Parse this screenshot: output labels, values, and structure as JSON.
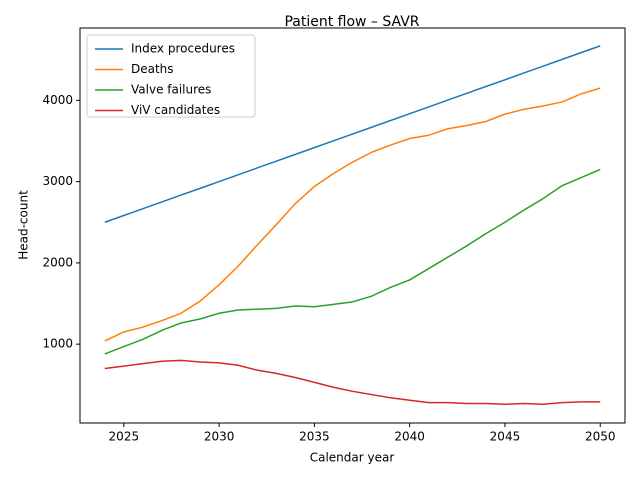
{
  "chart_data": {
    "type": "line",
    "title": "Patient flow – SAVR",
    "x_label": "Calendar year",
    "y_label": "Head-count",
    "x": [
      2024,
      2025,
      2026,
      2027,
      2028,
      2029,
      2030,
      2031,
      2032,
      2033,
      2034,
      2035,
      2036,
      2037,
      2038,
      2039,
      2040,
      2041,
      2042,
      2043,
      2044,
      2045,
      2046,
      2047,
      2048,
      2049,
      2050
    ],
    "series": [
      {
        "name": "Index procedures",
        "color": "#1f77b4",
        "values": [
          2500,
          2583,
          2667,
          2750,
          2834,
          2917,
          3001,
          3084,
          3168,
          3251,
          3335,
          3418,
          3502,
          3585,
          3669,
          3752,
          3836,
          3919,
          4003,
          4086,
          4170,
          4253,
          4337,
          4420,
          4504,
          4587,
          4670
        ]
      },
      {
        "name": "Deaths",
        "color": "#ff7f0e",
        "values": [
          1040,
          1150,
          1210,
          1290,
          1380,
          1530,
          1730,
          1960,
          2220,
          2470,
          2730,
          2940,
          3100,
          3240,
          3360,
          3450,
          3530,
          3570,
          3650,
          3690,
          3740,
          3830,
          3890,
          3930,
          3980,
          4080,
          4150
        ]
      },
      {
        "name": "Valve failures",
        "color": "#2ca02c",
        "values": [
          880,
          970,
          1060,
          1170,
          1260,
          1310,
          1380,
          1420,
          1430,
          1440,
          1470,
          1460,
          1490,
          1520,
          1590,
          1700,
          1790,
          1930,
          2070,
          2210,
          2360,
          2500,
          2650,
          2790,
          2950,
          3050,
          3150
        ]
      },
      {
        "name": "ViV candidates",
        "color": "#d62728",
        "values": [
          700,
          730,
          760,
          790,
          800,
          780,
          770,
          740,
          680,
          640,
          590,
          530,
          470,
          420,
          380,
          340,
          310,
          280,
          280,
          270,
          270,
          260,
          270,
          260,
          280,
          290,
          290
        ]
      }
    ],
    "xlim": [
      2022.7,
      2051.3
    ],
    "ylim": [
      30,
      4890
    ],
    "xticks": [
      2025,
      2030,
      2035,
      2040,
      2045,
      2050
    ],
    "yticks": [
      1000,
      2000,
      3000,
      4000
    ],
    "legend": "upper left",
    "grid": false
  }
}
